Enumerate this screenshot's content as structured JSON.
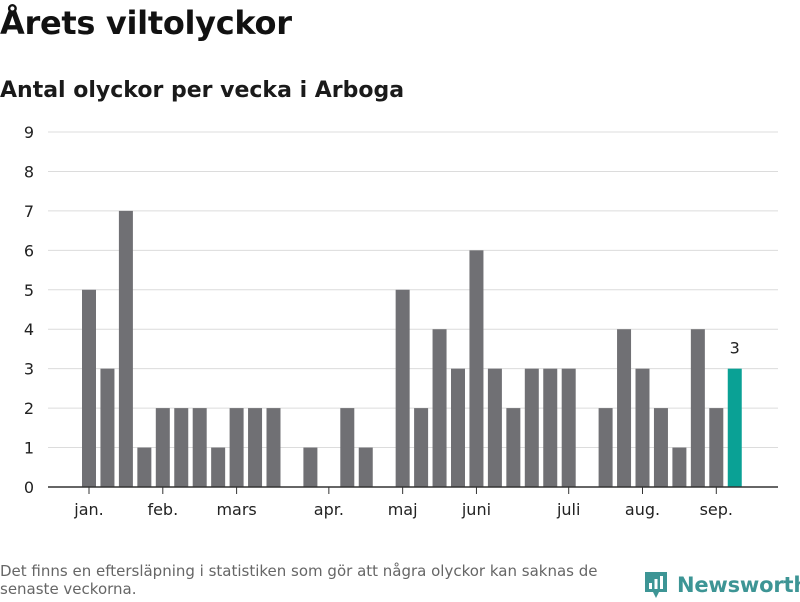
{
  "title": "Årets viltolyckor",
  "subtitle": "Antal olyckor per vecka i Arboga",
  "footnote": "Det finns en eftersläpning i statistiken som gör att några olyckor kan saknas de senaste veckorna.",
  "brand": {
    "name": "Newsworthy",
    "icon": "newsworthy-logo-icon"
  },
  "colors": {
    "bar": "#707074",
    "highlight": "#0aa195",
    "grid": "#dcdcdc",
    "axis": "#333333",
    "brand": "#3d9595"
  },
  "chart_data": {
    "type": "bar",
    "ylim": [
      0,
      9
    ],
    "y_ticks": [
      0,
      1,
      2,
      3,
      4,
      5,
      6,
      7,
      8,
      9
    ],
    "grid": true,
    "xlabel": "",
    "ylabel": "",
    "weeks": [
      1,
      2,
      3,
      4,
      5,
      6,
      7,
      8,
      9,
      10,
      11,
      12,
      13,
      14,
      15,
      16,
      17,
      18,
      19,
      20,
      21,
      22,
      23,
      24,
      25,
      26,
      27,
      28,
      29,
      30,
      31,
      32,
      33,
      34,
      35,
      36,
      37
    ],
    "values": [
      5,
      3,
      7,
      1,
      2,
      2,
      2,
      1,
      2,
      2,
      2,
      0,
      1,
      0,
      2,
      1,
      0,
      5,
      2,
      4,
      3,
      6,
      3,
      2,
      3,
      3,
      3,
      0,
      2,
      4,
      3,
      2,
      1,
      4,
      2,
      3,
      null
    ],
    "highlight_index": 35,
    "highlight_label": "3",
    "month_labels": [
      {
        "label": "jan.",
        "position": 1
      },
      {
        "label": "feb.",
        "position": 5
      },
      {
        "label": "mars",
        "position": 9
      },
      {
        "label": "apr.",
        "position": 14
      },
      {
        "label": "maj",
        "position": 18
      },
      {
        "label": "juni",
        "position": 22
      },
      {
        "label": "juli",
        "position": 27
      },
      {
        "label": "aug.",
        "position": 31
      },
      {
        "label": "sep.",
        "position": 35
      }
    ]
  }
}
